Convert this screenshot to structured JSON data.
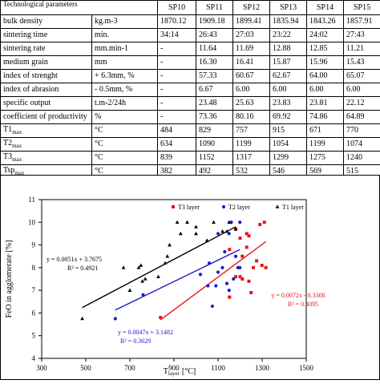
{
  "table": {
    "corner_label": "Technological parameters",
    "columns": [
      "SP10",
      "SP11",
      "SP12",
      "SP13",
      "SP14",
      "SP15"
    ],
    "rows": [
      {
        "name": "bulk density",
        "unit": "kg.m-3",
        "values": [
          "1870.12",
          "1909.18",
          "1899.41",
          "1835.94",
          "1843.26",
          "1857.91"
        ]
      },
      {
        "name": "sintering time",
        "unit": "min.",
        "values": [
          "34:14",
          "26:43",
          "27:03",
          "23:22",
          "24:02",
          "27:43"
        ]
      },
      {
        "name": "sintering rate",
        "unit": "mm.min-1",
        "values": [
          "-",
          "11.64",
          "11.69",
          "12.88",
          "12.85",
          "11.21"
        ]
      },
      {
        "name": "medium grain",
        "unit": "mm",
        "values": [
          "-",
          "16.30",
          "16.41",
          "15.87",
          "15.96",
          "15.43"
        ]
      },
      {
        "name": "index of strenght",
        "unit": "+ 6.3mm, %",
        "values": [
          "-",
          "57.33",
          "60.67",
          "62.67",
          "64.00",
          "65.07"
        ]
      },
      {
        "name": "index of abrasion",
        "unit": "- 0.5mm, %",
        "values": [
          "-",
          "6.67",
          "6.00",
          "6.00",
          "6.00",
          "6.00"
        ]
      },
      {
        "name": "specific output",
        "unit": "t.m-2/24h",
        "values": [
          "-",
          "23.48",
          "25.63",
          "23.83",
          "23.81",
          "22.12"
        ]
      },
      {
        "name": "coefficient of productivity",
        "unit": "%",
        "values": [
          "-",
          "73.36",
          "80.16",
          "69.92",
          "74.86",
          "64.89"
        ]
      },
      {
        "name": "T1",
        "sub": "max",
        "unit": "°C",
        "values": [
          "484",
          "829",
          "757",
          "915",
          "671",
          "770"
        ]
      },
      {
        "name": "T2",
        "sub": "max",
        "unit": "°C",
        "values": [
          "634",
          "1090",
          "1199",
          "1054",
          "1199",
          "1074"
        ]
      },
      {
        "name": "T3",
        "sub": "max",
        "unit": "°C",
        "values": [
          "839",
          "1152",
          "1317",
          "1299",
          "1275",
          "1240"
        ]
      },
      {
        "name": "Tsp",
        "sub": "max",
        "unit": "°C",
        "values": [
          "382",
          "492",
          "532",
          "546",
          "569",
          "515"
        ]
      }
    ]
  },
  "chart_data": {
    "type": "scatter",
    "xlabel_main": "T",
    "xlabel_sub": "layer",
    "xlabel_unit": "[°C]",
    "ylabel": "FeO in agglomerate [%]",
    "xlim": [
      300,
      1500
    ],
    "ylim": [
      4,
      11
    ],
    "x_ticks": [
      "300",
      "500",
      "700",
      "900",
      "1100",
      "1300",
      "1500"
    ],
    "y_ticks": [
      "4",
      "5",
      "6",
      "7",
      "8",
      "9",
      "10",
      "11"
    ],
    "grid": false,
    "legend": "top-right",
    "series": [
      {
        "name": "T3 layer",
        "color": "#e8141b",
        "marker": "square",
        "points": [
          [
            839,
            5.8
          ],
          [
            1152,
            6.7
          ],
          [
            1317,
            8.0
          ],
          [
            1299,
            8.1
          ],
          [
            1275,
            8.3
          ],
          [
            1240,
            7.4
          ],
          [
            1152,
            8.8
          ],
          [
            1200,
            7.6
          ],
          [
            1230,
            9.5
          ],
          [
            1290,
            9.9
          ],
          [
            1240,
            9.4
          ],
          [
            1210,
            8.5
          ],
          [
            1180,
            9.7
          ],
          [
            1250,
            6.9
          ],
          [
            1210,
            7.5
          ],
          [
            1310,
            10.0
          ],
          [
            1200,
            9.3
          ],
          [
            1260,
            8.0
          ],
          [
            1230,
            8.9
          ],
          [
            1180,
            7.6
          ]
        ],
        "trendline_equation": "y = 0.0072x - 0.3308",
        "r2_label": "R² = 0.4095",
        "trend": [
          [
            839,
            5.7
          ],
          [
            1317,
            9.15
          ]
        ]
      },
      {
        "name": "T2 layer",
        "color": "#1a1acc",
        "marker": "dot",
        "points": [
          [
            634,
            5.75
          ],
          [
            1090,
            7.2
          ],
          [
            1199,
            8.0
          ],
          [
            1054,
            7.2
          ],
          [
            1199,
            10.0
          ],
          [
            1074,
            6.3
          ],
          [
            1130,
            8.7
          ],
          [
            1160,
            10.0
          ],
          [
            1150,
            9.5
          ],
          [
            1100,
            9.5
          ],
          [
            1170,
            7.5
          ],
          [
            1190,
            8.0
          ],
          [
            1140,
            7.3
          ],
          [
            1180,
            8.5
          ],
          [
            1060,
            8.2
          ],
          [
            1120,
            8.0
          ],
          [
            1150,
            7.0
          ],
          [
            1020,
            7.7
          ],
          [
            760,
            6.8
          ],
          [
            1100,
            7.8
          ]
        ],
        "trendline_equation": "y = 0.0047x + 3.1482",
        "r2_label": "R² = 0.3629",
        "trend": [
          [
            634,
            6.13
          ],
          [
            1199,
            8.8
          ]
        ]
      },
      {
        "name": "T1 layer",
        "color": "#000000",
        "marker": "triangle",
        "points": [
          [
            484,
            5.75
          ],
          [
            829,
            7.6
          ],
          [
            757,
            7.4
          ],
          [
            915,
            10.0
          ],
          [
            671,
            8.0
          ],
          [
            770,
            7.5
          ],
          [
            700,
            7.0
          ],
          [
            750,
            8.1
          ],
          [
            860,
            8.2
          ],
          [
            930,
            9.5
          ],
          [
            1000,
            9.5
          ],
          [
            1050,
            9.2
          ],
          [
            1080,
            10.0
          ],
          [
            1120,
            9.6
          ],
          [
            1140,
            9.6
          ],
          [
            880,
            9.0
          ],
          [
            960,
            10.0
          ],
          [
            1000,
            9.8
          ],
          [
            1150,
            10.0
          ],
          [
            1180,
            9.7
          ],
          [
            740,
            8.0
          ],
          [
            870,
            8.5
          ]
        ],
        "trendline_equation": "y = 0.0051x + 3.7675",
        "r2_label": "R² = 0.4921",
        "trend": [
          [
            484,
            6.24
          ],
          [
            1180,
            9.8
          ]
        ]
      }
    ]
  }
}
